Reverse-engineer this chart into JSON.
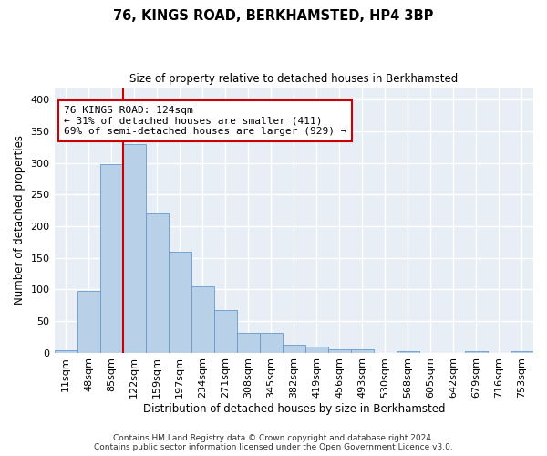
{
  "title": "76, KINGS ROAD, BERKHAMSTED, HP4 3BP",
  "subtitle": "Size of property relative to detached houses in Berkhamsted",
  "xlabel": "Distribution of detached houses by size in Berkhamsted",
  "ylabel": "Number of detached properties",
  "footer_line1": "Contains HM Land Registry data © Crown copyright and database right 2024.",
  "footer_line2": "Contains public sector information licensed under the Open Government Licence v3.0.",
  "bar_labels": [
    "11sqm",
    "48sqm",
    "85sqm",
    "122sqm",
    "159sqm",
    "197sqm",
    "234sqm",
    "271sqm",
    "308sqm",
    "345sqm",
    "382sqm",
    "419sqm",
    "456sqm",
    "493sqm",
    "530sqm",
    "568sqm",
    "605sqm",
    "642sqm",
    "679sqm",
    "716sqm",
    "753sqm"
  ],
  "bar_heights": [
    4,
    97,
    298,
    330,
    220,
    160,
    105,
    67,
    31,
    31,
    12,
    10,
    5,
    5,
    0,
    3,
    0,
    0,
    3,
    0,
    3
  ],
  "bar_color": "#b8d0e8",
  "bar_edge_color": "#6699cc",
  "background_color": "#e8eef5",
  "grid_color": "#ffffff",
  "red_line_index": 3,
  "annotation_text": "76 KINGS ROAD: 124sqm\n← 31% of detached houses are smaller (411)\n69% of semi-detached houses are larger (929) →",
  "annotation_box_color": "#ffffff",
  "annotation_box_edge": "#cc0000",
  "ylim": [
    0,
    420
  ],
  "yticks": [
    0,
    50,
    100,
    150,
    200,
    250,
    300,
    350,
    400
  ]
}
